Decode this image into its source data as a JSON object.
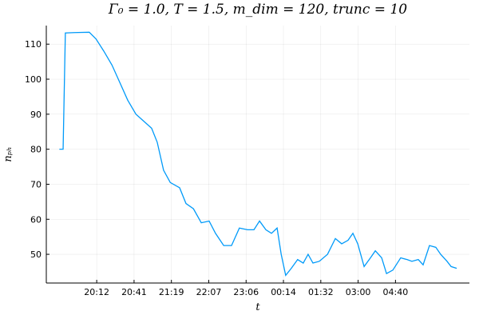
{
  "chart_data": {
    "type": "line",
    "title": "Γ₀ = 1.0, T = 1.5, m_dim = 120, trunc = 10",
    "x_label": "t",
    "y_label": "nₚₕ",
    "x": [
      0,
      1,
      1.6,
      4,
      8,
      9.8,
      11.9,
      14.1,
      16.2,
      18.3,
      20.5,
      22.6,
      24.7,
      26.2,
      27.9,
      29.7,
      32.2,
      33.9,
      35.9,
      38.0,
      40.1,
      41.8,
      44.0,
      46.1,
      48.2,
      50.4,
      52.1,
      53.6,
      55.3,
      56.8,
      58.3,
      59.4,
      60.6,
      62.1,
      63.8,
      65.3,
      66.6,
      67.9,
      69.6,
      71.8,
      73.9,
      75.6,
      77.3,
      78.6,
      79.9,
      81.6,
      83.3,
      84.6,
      86.3,
      87.6,
      89.3,
      91.4,
      93.1,
      94.4,
      96.1,
      97.4,
      99.1,
      100.8,
      102.1,
      103.8,
      104.9,
      106.4
    ],
    "series": [
      {
        "color": "#009af9",
        "values": [
          80,
          80,
          113.2,
          113.3,
          113.4,
          111.5,
          108,
          104,
          99,
          94,
          90,
          88,
          86,
          82,
          74,
          70.5,
          69,
          64.5,
          63,
          59,
          59.5,
          56,
          52.5,
          52.5,
          57.5,
          57,
          57,
          59.5,
          57,
          56,
          57.5,
          50,
          44,
          46,
          48.5,
          47.5,
          50,
          47.5,
          48,
          50,
          54.5,
          53,
          54,
          56,
          53,
          46.5,
          49,
          51,
          49,
          44.5,
          45.5,
          49,
          48.5,
          48,
          48.5,
          47,
          52.5,
          52,
          50,
          48,
          46.5,
          46
        ]
      }
    ],
    "xlim": [
      -3.5,
      109.8
    ],
    "xticks": [
      {
        "value": 10,
        "label": "20:12"
      },
      {
        "value": 20,
        "label": "20:41"
      },
      {
        "value": 30,
        "label": "21:19"
      },
      {
        "value": 40,
        "label": "22:07"
      },
      {
        "value": 50,
        "label": "23:06"
      },
      {
        "value": 60,
        "label": "00:14"
      },
      {
        "value": 70,
        "label": "01:32"
      },
      {
        "value": 80,
        "label": "03:00"
      },
      {
        "value": 90,
        "label": "04:40"
      }
    ],
    "ylim": [
      41.8,
      115.3
    ],
    "yticks": [
      50,
      60,
      70,
      80,
      90,
      100,
      110
    ],
    "grid": true
  }
}
